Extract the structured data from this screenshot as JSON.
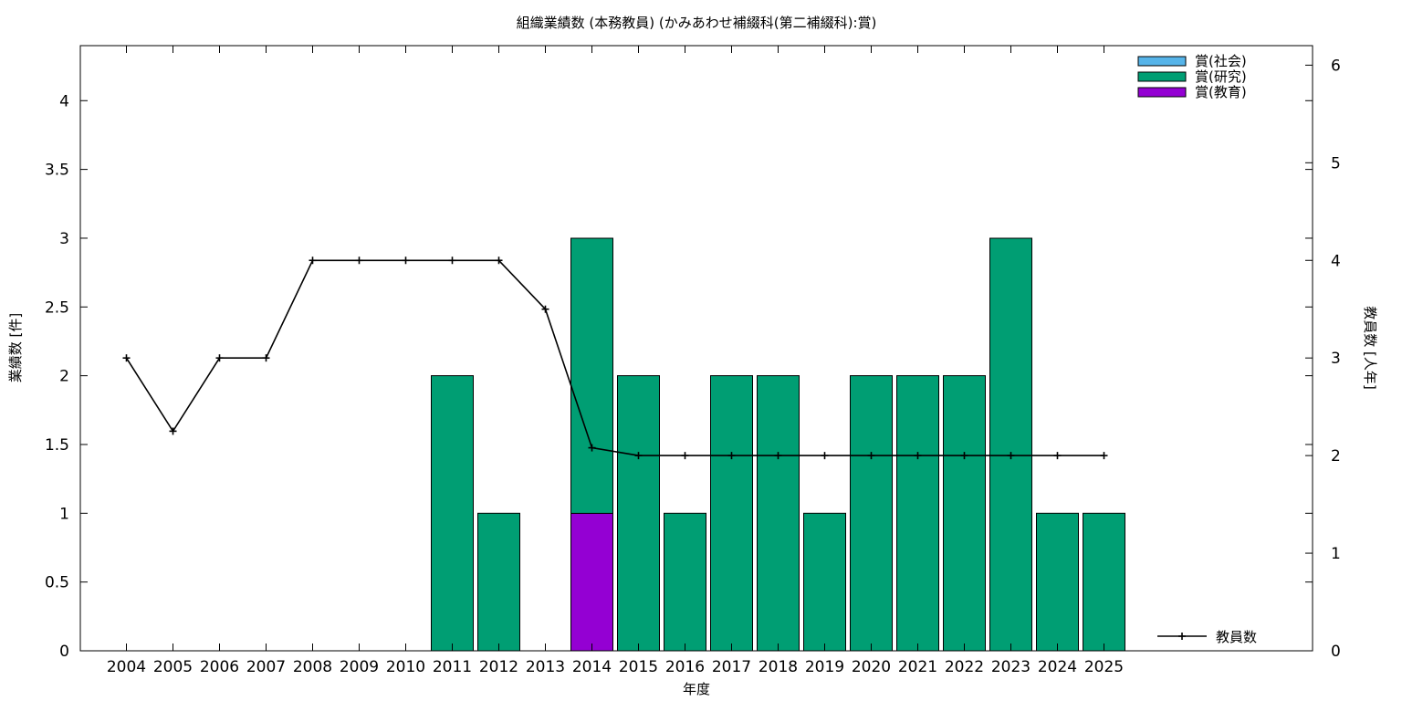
{
  "chart_data": {
    "type": "bar",
    "title": "組織業績数 (本務教員) (かみあわせ補綴科(第二補綴科):賞)",
    "xlabel": "年度",
    "ylabel": "業績数 [件]",
    "y2label": "教員数 [人年]",
    "categories": [
      "2004",
      "2005",
      "2006",
      "2007",
      "2008",
      "2009",
      "2010",
      "2011",
      "2012",
      "2013",
      "2014",
      "2015",
      "2016",
      "2017",
      "2018",
      "2019",
      "2020",
      "2021",
      "2022",
      "2023",
      "2024",
      "2025"
    ],
    "ylim": [
      0,
      4.4
    ],
    "y_ticks": [
      "0",
      "0.5",
      "1",
      "1.5",
      "2",
      "2.5",
      "3",
      "3.5",
      "4"
    ],
    "y2lim": [
      0,
      6.2
    ],
    "y2_ticks": [
      "0",
      "1",
      "2",
      "3",
      "4",
      "5",
      "6"
    ],
    "stacked": true,
    "series": [
      {
        "name": "賞(教育)",
        "color": "#9400d3",
        "values": [
          0,
          0,
          0,
          0,
          0,
          0,
          0,
          0,
          0,
          0,
          1,
          0,
          0,
          0,
          0,
          0,
          0,
          0,
          0,
          0,
          0,
          0
        ]
      },
      {
        "name": "賞(研究)",
        "color": "#009e73",
        "values": [
          0,
          0,
          0,
          0,
          0,
          0,
          0,
          2,
          1,
          0,
          2,
          2,
          1,
          2,
          2,
          1,
          2,
          2,
          2,
          3,
          1,
          1
        ]
      },
      {
        "name": "賞(社会)",
        "color": "#56b4e9",
        "values": [
          0,
          0,
          0,
          0,
          0,
          0,
          0,
          0,
          0,
          0,
          0,
          0,
          0,
          0,
          0,
          0,
          0,
          0,
          0,
          0,
          0,
          0
        ]
      }
    ],
    "line_series": {
      "name": "教員数",
      "axis": "y2",
      "color": "#000000",
      "values": [
        3,
        2.25,
        3,
        3,
        4,
        4,
        4,
        4,
        4,
        3.5,
        2.08,
        2,
        2,
        2,
        2,
        2,
        2,
        2,
        2,
        2,
        2,
        2
      ]
    },
    "legend_order": [
      "賞(社会)",
      "賞(研究)",
      "賞(教育)"
    ],
    "legend_placement": "top-right",
    "line_legend_placement": "bottom-right",
    "grid": false
  }
}
